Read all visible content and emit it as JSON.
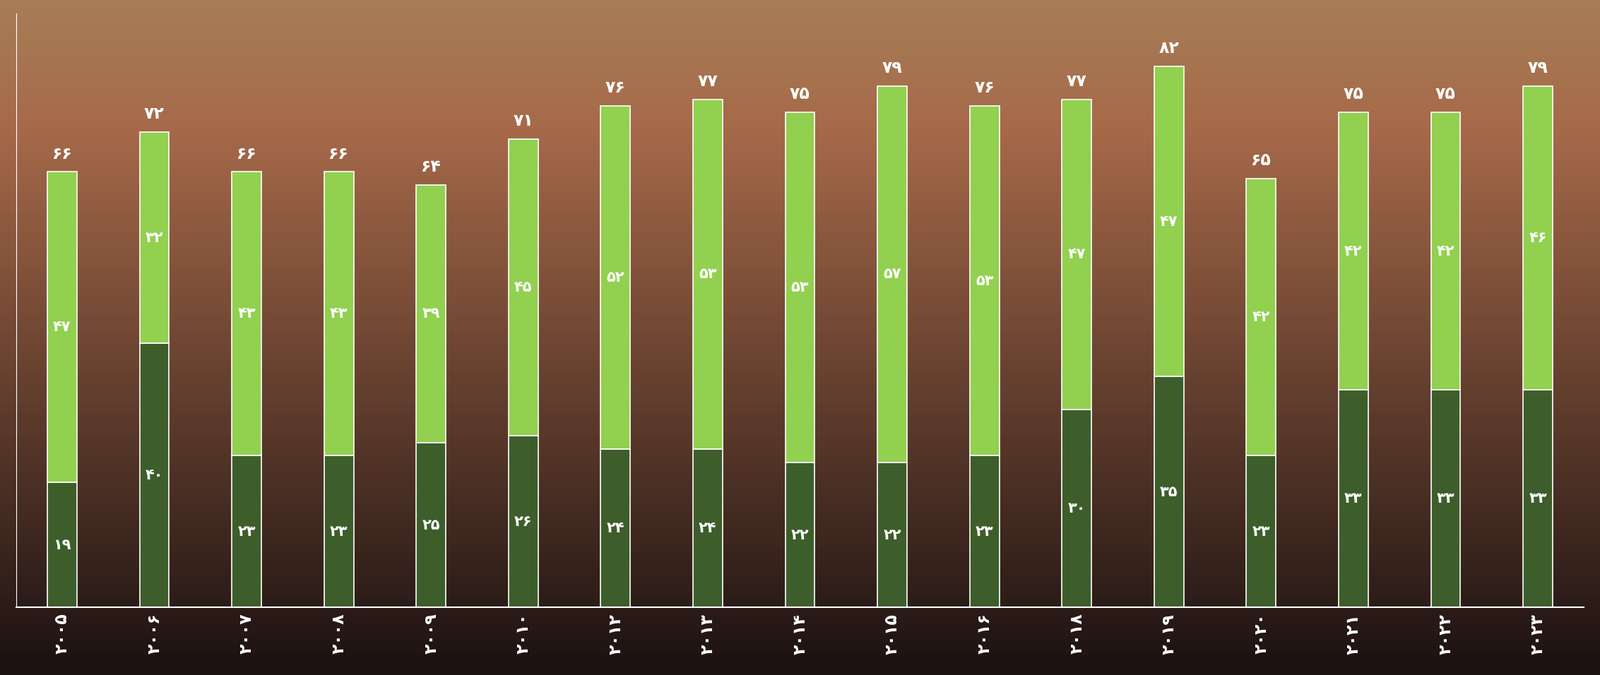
{
  "chart_data": {
    "type": "bar",
    "stacked": true,
    "data_labels": true,
    "tick_labels": "x",
    "categories": [
      "۲۰۰۵",
      "۲۰۰۶",
      "۲۰۰۷",
      "۲۰۰۸",
      "۲۰۰۹",
      "۲۰۱۰",
      "۲۰۱۲",
      "۲۰۱۳",
      "۲۰۱۴",
      "۲۰۱۵",
      "۲۰۱۶",
      "۲۰۱۸",
      "۲۰۱۹",
      "۲۰۲۰",
      "۲۰۲۱",
      "۲۰۲۲",
      "۲۰۲۳"
    ],
    "series": [
      {
        "color": "#3d5e2b",
        "values": [
          19,
          40,
          23,
          23,
          25,
          26,
          24,
          24,
          22,
          22,
          23,
          30,
          35,
          23,
          33,
          33,
          33
        ],
        "value_labels": [
          "۱۹",
          "۴۰",
          "۲۳",
          "۲۳",
          "۲۵",
          "۲۶",
          "۲۴",
          "۲۴",
          "۲۲",
          "۲۲",
          "۲۳",
          "۳۰",
          "۳۵",
          "۲۳",
          "۳۳",
          "۳۳",
          "۳۳"
        ]
      },
      {
        "color": "#92d050",
        "values": [
          47,
          32,
          43,
          43,
          39,
          45,
          52,
          53,
          53,
          57,
          53,
          47,
          47,
          42,
          42,
          42,
          46
        ],
        "value_labels": [
          "۴۷",
          "۳۲",
          "۴۳",
          "۴۳",
          "۳۹",
          "۴۵",
          "۵۲",
          "۵۳",
          "۵۳",
          "۵۷",
          "۵۳",
          "۴۷",
          "۴۷",
          "۴۲",
          "۴۲",
          "۴۲",
          "۴۶"
        ]
      }
    ],
    "totals": [
      66,
      72,
      66,
      66,
      64,
      71,
      76,
      77,
      75,
      79,
      76,
      77,
      82,
      65,
      75,
      75,
      79
    ],
    "total_labels": [
      "۶۶",
      "۷۲",
      "۶۶",
      "۶۶",
      "۶۴",
      "۷۱",
      "۷۶",
      "۷۷",
      "۷۵",
      "۷۹",
      "۷۶",
      "۷۷",
      "۸۲",
      "۶۵",
      "۷۵",
      "۷۵",
      "۷۹"
    ],
    "ylim": [
      0,
      90
    ]
  }
}
